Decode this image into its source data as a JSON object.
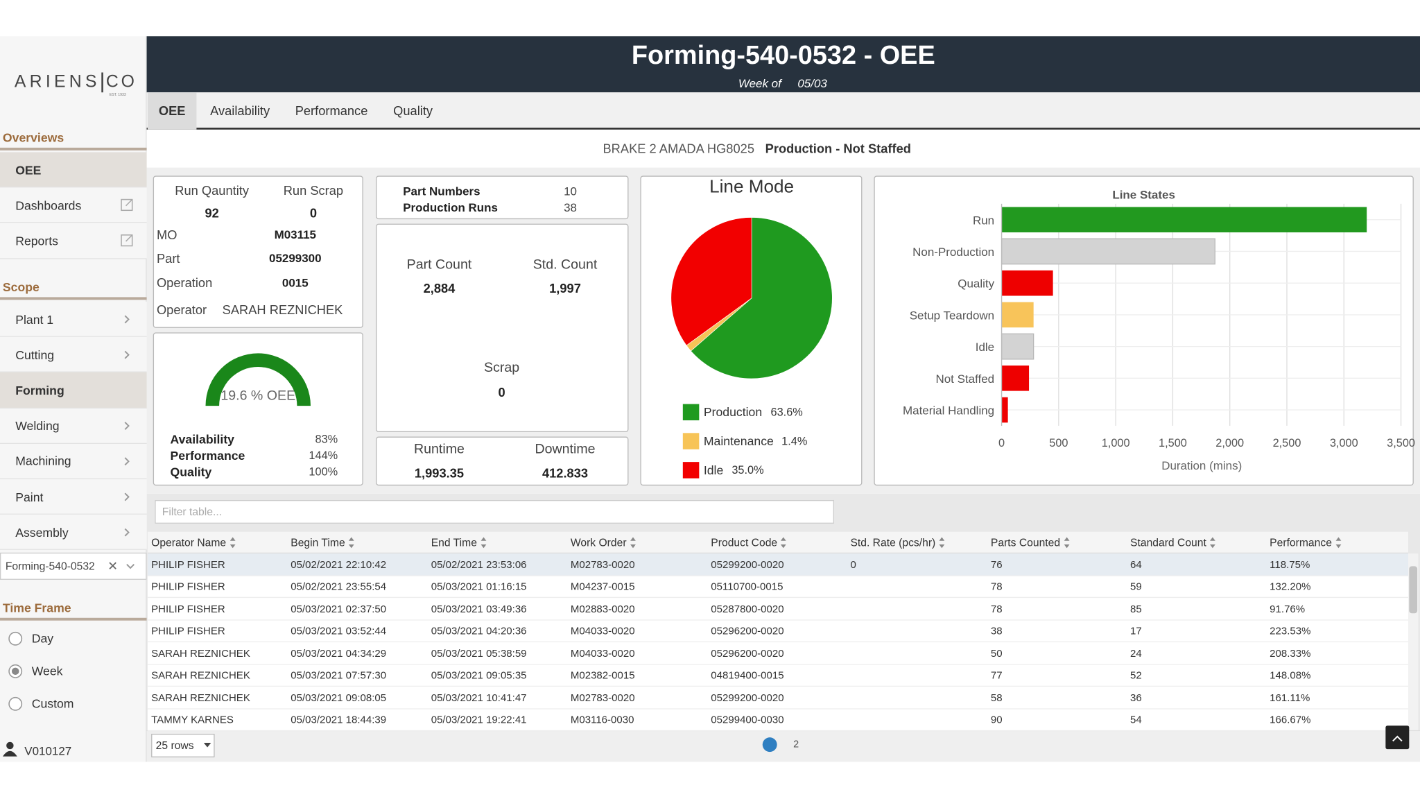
{
  "brand": {
    "name": "ARIENS",
    "suffix": "CO",
    "tagline": "EST. 1933"
  },
  "sidebar": {
    "sections": [
      {
        "title": "Overviews",
        "items": [
          "OEE",
          "Dashboards",
          "Reports"
        ],
        "active": "OEE"
      },
      {
        "title": "Scope",
        "items": [
          "Plant 1",
          "Cutting",
          "Forming",
          "Welding",
          "Machining",
          "Paint",
          "Assembly"
        ],
        "active": "Forming"
      }
    ],
    "selected_scope": "Forming-540-0532",
    "time_frame": {
      "title": "Time Frame",
      "options": [
        "Day",
        "Week",
        "Custom"
      ],
      "selected": "Week"
    },
    "user": "V010127"
  },
  "header": {
    "title": "Forming-540-0532 - OEE",
    "subtitle": "Week of",
    "date": "05/03"
  },
  "tabs": {
    "items": [
      "OEE",
      "Availability",
      "Performance",
      "Quality"
    ],
    "active": "OEE"
  },
  "status": {
    "machine": "BRAKE 2 AMADA HG8025",
    "state": "Production - Not Staffed"
  },
  "run": {
    "quantity_label": "Run Qauntity",
    "quantity": "92",
    "scrap_label": "Run Scrap",
    "scrap": "0",
    "fields": [
      [
        "MO",
        "M03115"
      ],
      [
        "Part",
        "05299300"
      ],
      [
        "Operation",
        "0015"
      ],
      [
        "Operator",
        "SARAH REZNICHEK"
      ]
    ]
  },
  "oee": {
    "gauge_label": "19.6 % OEE",
    "metrics": [
      [
        "Availability",
        "83%"
      ],
      [
        "Performance",
        "144%"
      ],
      [
        "Quality",
        "100%"
      ]
    ]
  },
  "parts": {
    "rows": [
      [
        "Part Numbers",
        "10"
      ],
      [
        "Production Runs",
        "38"
      ]
    ]
  },
  "counts": {
    "part_count_label": "Part Count",
    "part_count": "2,884",
    "std_count_label": "Std. Count",
    "std_count": "1,997",
    "scrap_label": "Scrap",
    "scrap": "0"
  },
  "time": {
    "runtime_label": "Runtime",
    "runtime": "1,993.35",
    "downtime_label": "Downtime",
    "downtime": "412.833"
  },
  "chart_data": [
    {
      "type": "pie",
      "title": "Line Mode",
      "categories": [
        "Production",
        "Maintenance",
        "Idle"
      ],
      "values": [
        63.6,
        1.4,
        35.0
      ],
      "value_labels": [
        "63.6%",
        "1.4%",
        "35.0%"
      ],
      "colors": [
        "#1f9a1f",
        "#f7c457",
        "#f20000"
      ]
    },
    {
      "type": "bar",
      "orientation": "horizontal",
      "title": "Line States",
      "categories": [
        "Run",
        "Non-Production",
        "Quality",
        "Setup Teardown",
        "Idle",
        "Not Staffed",
        "Material Handling"
      ],
      "values": [
        3200,
        1870,
        450,
        280,
        280,
        240,
        55
      ],
      "colors": [
        "#22991f",
        "#d3d3d3",
        "#ee0000",
        "#f8c45a",
        "#d3d3d3",
        "#ee0000",
        "#ee0000"
      ],
      "xlim": [
        0,
        3500
      ],
      "xticks": [
        0,
        500,
        {
          "value": 1000,
          "label": "1,000"
        },
        {
          "value": 1500,
          "label": "1,500"
        },
        {
          "value": 2000,
          "label": "2,000"
        },
        {
          "value": 2500,
          "label": "2,500"
        },
        {
          "value": 3000,
          "label": "3,000"
        },
        {
          "value": 3500,
          "label": "3,500"
        }
      ],
      "xlabel": "Duration (mins)",
      "grid": true
    }
  ],
  "table": {
    "filter_placeholder": "Filter table...",
    "columns": [
      "Operator Name",
      "Begin Time",
      "End Time",
      "Work Order",
      "Product Code",
      "Std. Rate (pcs/hr)",
      "Parts Counted",
      "Standard Count",
      "Performance"
    ],
    "rows": [
      [
        "PHILIP FISHER",
        "05/02/2021 22:10:42",
        "05/02/2021 23:53:06",
        "M02783-0020",
        "05299200-0020",
        "0",
        "76",
        "64",
        "118.75%"
      ],
      [
        "PHILIP FISHER",
        "05/02/2021 23:55:54",
        "05/03/2021 01:16:15",
        "M04237-0015",
        "05110700-0015",
        null,
        "78",
        "59",
        "132.20%"
      ],
      [
        "PHILIP FISHER",
        "05/03/2021 02:37:50",
        "05/03/2021 03:49:36",
        "M02883-0020",
        "05287800-0020",
        null,
        "78",
        "85",
        "91.76%"
      ],
      [
        "PHILIP FISHER",
        "05/03/2021 03:52:44",
        "05/03/2021 04:20:36",
        "M04033-0020",
        "05296200-0020",
        null,
        "38",
        "17",
        "223.53%"
      ],
      [
        "SARAH REZNICHEK",
        "05/03/2021 04:34:29",
        "05/03/2021 05:38:59",
        "M04033-0020",
        "05296200-0020",
        null,
        "50",
        "24",
        "208.33%"
      ],
      [
        "SARAH REZNICHEK",
        "05/03/2021 07:57:30",
        "05/03/2021 09:05:35",
        "M02382-0015",
        "04819400-0015",
        null,
        "77",
        "52",
        "148.08%"
      ],
      [
        "SARAH REZNICHEK",
        "05/03/2021 09:08:05",
        "05/03/2021 10:41:47",
        "M02783-0020",
        "05299200-0020",
        null,
        "58",
        "36",
        "161.11%"
      ],
      [
        "TAMMY KARNES",
        "05/03/2021 18:44:39",
        "05/03/2021 19:22:41",
        "M03116-0030",
        "05299400-0030",
        null,
        "90",
        "54",
        "166.67%"
      ]
    ],
    "page_size": "25 rows",
    "pages": [
      "1",
      "2"
    ],
    "active_page": "1"
  }
}
